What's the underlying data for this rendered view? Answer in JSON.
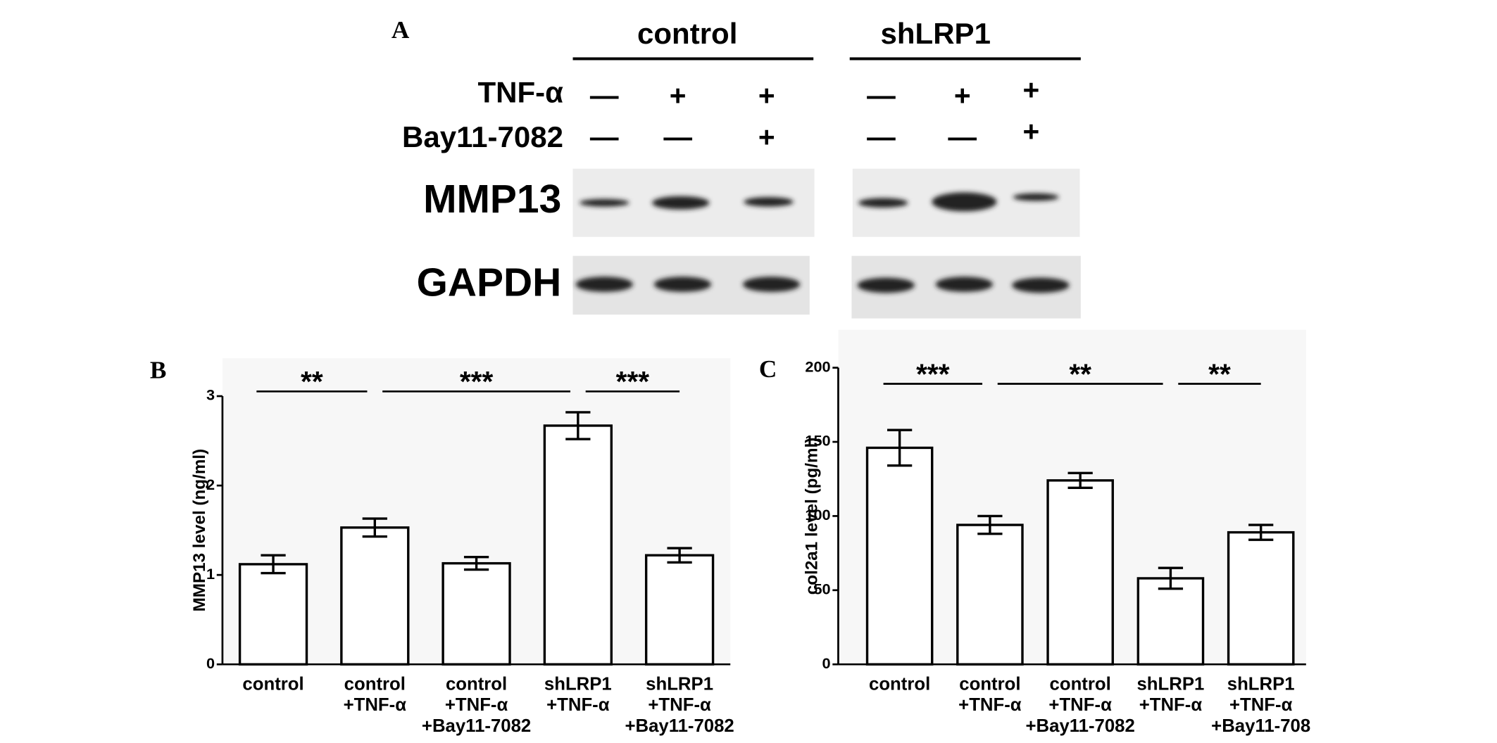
{
  "blot": {
    "panel": "A",
    "groups": [
      "control",
      "shLRP1"
    ],
    "rows": [
      {
        "name": "TNF-α",
        "marks": [
          "—",
          "+",
          "+",
          "—",
          "+",
          "+"
        ]
      },
      {
        "name": "Bay11-7082",
        "marks": [
          "—",
          "—",
          "+",
          "—",
          "—",
          "+"
        ]
      }
    ],
    "bands": [
      "MMP13",
      "GAPDH"
    ]
  },
  "chart_data": [
    {
      "type": "bar",
      "panel": "B",
      "ylabel": "MMP13  level  (ng/ml)",
      "categories": [
        [
          "control"
        ],
        [
          "control",
          "+TNF-α"
        ],
        [
          "control",
          "+TNF-α",
          "+Bay11-7082"
        ],
        [
          "shLRP1",
          "+TNF-α"
        ],
        [
          "shLRP1",
          "+TNF-α",
          "+Bay11-7082"
        ]
      ],
      "values": [
        1.12,
        1.53,
        1.13,
        2.67,
        1.22
      ],
      "errors": [
        0.1,
        0.1,
        0.07,
        0.15,
        0.08
      ],
      "ylim": [
        0,
        3
      ],
      "yticks": [
        0,
        1,
        2,
        3
      ],
      "significance": [
        "**",
        "***",
        "***"
      ]
    },
    {
      "type": "bar",
      "panel": "C",
      "ylabel": "col2a1  level  (pg/ml)",
      "categories": [
        [
          "control"
        ],
        [
          "control",
          "+TNF-α"
        ],
        [
          "control",
          "+TNF-α",
          "+Bay11-7082"
        ],
        [
          "shLRP1",
          "+TNF-α"
        ],
        [
          "shLRP1",
          "+TNF-α",
          "+Bay11-708"
        ]
      ],
      "values": [
        146,
        94,
        124,
        58,
        89
      ],
      "errors": [
        12,
        6,
        5,
        7,
        5
      ],
      "ylim": [
        0,
        200
      ],
      "yticks": [
        0,
        50,
        100,
        150,
        200
      ],
      "significance": [
        "***",
        "**",
        "**"
      ]
    }
  ]
}
